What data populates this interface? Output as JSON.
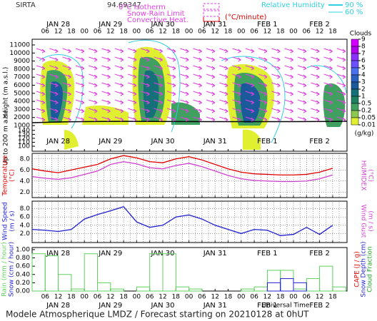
{
  "header": {
    "site": "SIRTA",
    "coords": "94.69347",
    "isotherm": "0°C Isotherm",
    "snow_rain": "Snow-Rain Limit",
    "convective": "Convective Heat.",
    "convective_unit": "(°C/minute)",
    "rh": "Relative Humidity",
    "rh_high": "90 %",
    "rh_low": "60 %"
  },
  "time_axis": {
    "categories": [
      null,
      "06",
      "12",
      "18",
      "00",
      "06",
      "12",
      "18",
      "00",
      "06",
      "12",
      "18",
      "00",
      "06",
      "12",
      "18",
      "00",
      "06",
      "12",
      "18",
      "00",
      "06",
      "12",
      "18"
    ],
    "days": [
      "JAN 28",
      "JAN 29",
      "JAN 30",
      "JAN 31",
      "FEB  1",
      "FEB  2"
    ],
    "label": "Universal Time"
  },
  "chart_data": [
    {
      "type": "contour",
      "y_label": "Height (m a.s.l.)",
      "y_label_low": "Up to 200 m a.s.l.",
      "ylim": [
        1000,
        11000
      ],
      "yticks": [
        1000,
        2000,
        3000,
        4000,
        5000,
        6000,
        7000,
        8000,
        9000,
        10000,
        11000
      ],
      "lower_ylim": [
        100,
        145
      ],
      "lower_yticks": [
        100,
        110,
        120,
        130,
        140
      ],
      "colorbar": {
        "title": "Clouds",
        "unit": "(g/kg)",
        "ticks": [
          9,
          8,
          7,
          6,
          5,
          4,
          3,
          2,
          1,
          0.5,
          0.2,
          0.05,
          0.01
        ],
        "colors": [
          "#d400ff",
          "#b000f0",
          "#8a30ff",
          "#6a50ff",
          "#4a70f0",
          "#2a60c0",
          "#1a5a9a",
          "#16707a",
          "#1e8060",
          "#40a060",
          "#8cc850",
          "#e0f030"
        ]
      }
    },
    {
      "type": "line",
      "ylim": [
        1,
        9
      ],
      "yticks": [
        {
          "value": 2,
          "label": "2.0"
        },
        {
          "value": 4,
          "label": "4.0"
        },
        {
          "value": 6,
          "label": "6.0"
        },
        {
          "value": 8,
          "label": "8.0"
        }
      ],
      "unit": "(°C)",
      "grid": true,
      "series": [
        {
          "name": "Temperature",
          "color": "#e00000",
          "values": [
            6.2,
            5.8,
            5.5,
            6.0,
            6.5,
            7.0,
            8.0,
            8.6,
            8.2,
            7.5,
            7.3,
            8.0,
            8.4,
            7.8,
            7.0,
            6.2,
            5.6,
            5.3,
            5.2,
            5.1,
            5.1,
            5.2,
            5.6,
            6.3
          ]
        },
        {
          "name": "HUMIDEX",
          "color": "#d040d0",
          "axis": "y2",
          "values": [
            4.8,
            4.5,
            4.3,
            4.6,
            5.2,
            5.8,
            7.0,
            7.5,
            7.1,
            6.4,
            6.2,
            6.8,
            7.2,
            6.6,
            5.8,
            5.0,
            4.4,
            4.1,
            4.0,
            3.9,
            3.9,
            4.0,
            4.4,
            5.1
          ]
        }
      ]
    },
    {
      "type": "line",
      "ylim": [
        0,
        10
      ],
      "yticks": [
        {
          "value": 2,
          "label": "2.0"
        },
        {
          "value": 4,
          "label": "4.0"
        },
        {
          "value": 6,
          "label": "6.0"
        },
        {
          "value": 8,
          "label": "8.0"
        }
      ],
      "unit": "(m / s)",
      "grid": true,
      "y2_label": "Wind Gust",
      "y2_color": "#d040d0",
      "series": [
        {
          "name": "Wind Speed",
          "color": "#2020d0",
          "values": [
            3.0,
            2.8,
            2.5,
            3.0,
            5.5,
            6.6,
            7.5,
            8.5,
            4.8,
            3.5,
            4.0,
            6.0,
            6.5,
            5.5,
            4.0,
            3.0,
            2.0,
            3.0,
            2.8,
            1.5,
            1.8,
            3.5,
            1.8,
            4.0
          ]
        }
      ]
    },
    {
      "type": "bar",
      "ylim": [
        0,
        1.05
      ],
      "yticks": [
        {
          "value": 0,
          "label": "0.00"
        },
        {
          "value": 0.2,
          "label": "0.20"
        },
        {
          "value": 0.4,
          "label": "0.40"
        },
        {
          "value": 0.6,
          "label": "0.60"
        },
        {
          "value": 0.8,
          "label": "0.80"
        },
        {
          "value": 1,
          "label": "1.00"
        }
      ],
      "right_labels": [
        {
          "text": "CAPE (J / g)",
          "color": "#e00000"
        },
        {
          "text": "Snow Depth (cm)",
          "color": "#2020d0"
        },
        {
          "text": "Cloud Fraction",
          "color": "#20a020"
        }
      ],
      "series": [
        {
          "name": "Rain (mm / hour)",
          "color": "#60d060",
          "values": [
            0.9,
            0.85,
            0.4,
            0.05,
            0.9,
            0.2,
            0.05,
            0,
            0.1,
            0.9,
            0.9,
            0.1,
            0.05,
            0,
            0,
            0,
            0.05,
            0.1,
            0.5,
            0.5,
            0.05,
            0.3,
            0.6,
            0.1
          ]
        },
        {
          "name": "Snow (cm / hour)",
          "color": "#2020d0",
          "values": [
            0,
            0,
            0,
            0,
            0,
            0,
            0,
            0,
            0,
            0,
            0,
            0,
            0,
            0,
            0,
            0,
            0,
            0,
            0.2,
            0.3,
            0.2,
            0,
            0,
            0
          ]
        }
      ]
    }
  ],
  "footer": "Modele Atmospherique LMDZ / Forecast starting on 20210128 at 0hUT"
}
